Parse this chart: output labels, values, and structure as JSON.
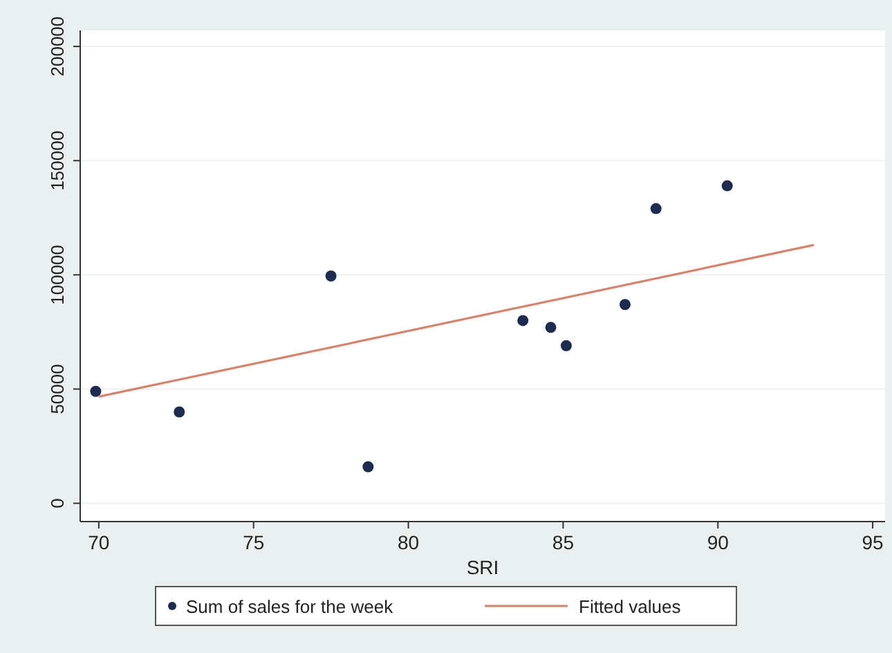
{
  "chart_data": {
    "type": "scatter",
    "xlabel": "SRI",
    "x": [
      69.9,
      72.6,
      77.5,
      78.7,
      83.7,
      84.6,
      85.1,
      87.0,
      88.0,
      90.3
    ],
    "series": [
      {
        "name": "Sum of sales for the week",
        "marker": "circle",
        "color": "#1c2b4f",
        "values": [
          49000,
          40000,
          99500,
          16000,
          80000,
          77000,
          69000,
          87000,
          129000,
          139000
        ]
      },
      {
        "name": "Fitted values",
        "type": "line",
        "marker": "none",
        "color": "#d9826b",
        "x": [
          70,
          93.1
        ],
        "values": [
          46700,
          113100
        ]
      }
    ],
    "xlim": [
      69.4,
      95.4
    ],
    "xticks": [
      70,
      75,
      80,
      85,
      90,
      95
    ],
    "ylim": [
      -8000,
      207000
    ],
    "yticks": [
      0,
      50000,
      100000,
      150000,
      200000
    ],
    "grid": "y",
    "legend": "bottom"
  }
}
